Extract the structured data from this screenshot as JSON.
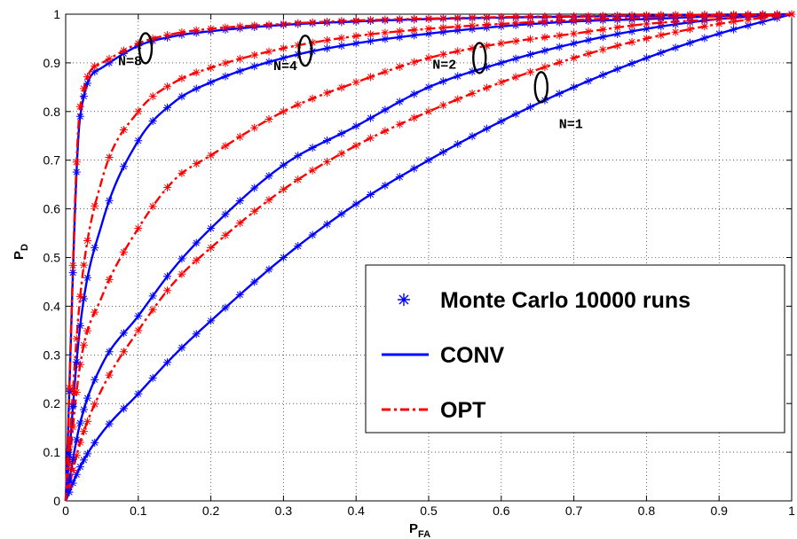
{
  "chart_data": {
    "type": "line",
    "title": "",
    "xlabel": "P",
    "xlabel_sub": "FA",
    "ylabel": "P",
    "ylabel_sub": "D",
    "xlim": [
      0,
      1
    ],
    "ylim": [
      0,
      1
    ],
    "xticks": [
      0,
      0.1,
      0.2,
      0.3,
      0.4,
      0.5,
      0.6,
      0.7,
      0.8,
      0.9,
      1
    ],
    "yticks": [
      0,
      0.1,
      0.2,
      0.3,
      0.4,
      0.5,
      0.6,
      0.7,
      0.8,
      0.9,
      1
    ],
    "xtick_labels": [
      "0",
      "0.1",
      "0.2",
      "0.3",
      "0.4",
      "0.5",
      "0.6",
      "0.7",
      "0.8",
      "0.9",
      "1"
    ],
    "ytick_labels": [
      "0",
      "0.1",
      "0.2",
      "0.3",
      "0.4",
      "0.5",
      "0.6",
      "0.7",
      "0.8",
      "0.9",
      "1"
    ],
    "grid": true,
    "x": [
      0,
      0.02,
      0.05,
      0.1,
      0.15,
      0.2,
      0.3,
      0.4,
      0.5,
      0.6,
      0.7,
      0.8,
      0.9,
      1
    ],
    "series": [
      {
        "name": "CONV",
        "group": "N=1",
        "color": "#0000ff",
        "style": "solid",
        "values": [
          0,
          0.07,
          0.14,
          0.22,
          0.3,
          0.37,
          0.5,
          0.61,
          0.7,
          0.78,
          0.85,
          0.91,
          0.96,
          1
        ]
      },
      {
        "name": "OPT",
        "group": "N=1",
        "color": "#ff0000",
        "style": "dashdot",
        "values": [
          0,
          0.12,
          0.23,
          0.35,
          0.45,
          0.52,
          0.64,
          0.73,
          0.8,
          0.86,
          0.91,
          0.95,
          0.98,
          1
        ]
      },
      {
        "name": "CONV",
        "group": "N=2",
        "color": "#0000ff",
        "style": "solid",
        "values": [
          0,
          0.16,
          0.28,
          0.38,
          0.48,
          0.56,
          0.69,
          0.77,
          0.85,
          0.9,
          0.94,
          0.97,
          0.99,
          1
        ]
      },
      {
        "name": "OPT",
        "group": "N=2",
        "color": "#ff0000",
        "style": "dashdot",
        "values": [
          0,
          0.28,
          0.42,
          0.56,
          0.66,
          0.71,
          0.8,
          0.86,
          0.91,
          0.94,
          0.96,
          0.98,
          0.99,
          1
        ]
      },
      {
        "name": "CONV",
        "group": "N=4",
        "color": "#0000ff",
        "style": "solid",
        "values": [
          0,
          0.36,
          0.57,
          0.74,
          0.82,
          0.86,
          0.91,
          0.94,
          0.96,
          0.975,
          0.985,
          0.99,
          0.996,
          1
        ]
      },
      {
        "name": "OPT",
        "group": "N=4",
        "color": "#ff0000",
        "style": "dashdot",
        "values": [
          0,
          0.42,
          0.66,
          0.8,
          0.86,
          0.89,
          0.93,
          0.955,
          0.97,
          0.98,
          0.988,
          0.993,
          0.997,
          1
        ]
      },
      {
        "name": "CONV",
        "group": "N=8",
        "color": "#0000ff",
        "style": "solid",
        "values": [
          0,
          0.79,
          0.89,
          0.935,
          0.955,
          0.965,
          0.978,
          0.985,
          0.99,
          0.993,
          0.995,
          0.997,
          0.999,
          1
        ]
      },
      {
        "name": "OPT",
        "group": "N=8",
        "color": "#ff0000",
        "style": "dashdot",
        "values": [
          0,
          0.81,
          0.9,
          0.94,
          0.96,
          0.97,
          0.98,
          0.987,
          0.991,
          0.994,
          0.996,
          0.998,
          0.999,
          1
        ]
      }
    ],
    "annotations": [
      {
        "text": "N=8",
        "x": 0.11,
        "y": 0.93
      },
      {
        "text": "N=4",
        "x": 0.33,
        "y": 0.925
      },
      {
        "text": "N=2",
        "x": 0.57,
        "y": 0.91
      },
      {
        "text": "N=1",
        "x": 0.655,
        "y": 0.85
      }
    ],
    "legend": {
      "placement": "lower-right",
      "entries": [
        {
          "label": "Monte Carlo 10000 runs",
          "marker": "asterisk",
          "color": "#0000ff"
        },
        {
          "label": "CONV",
          "marker": "solid-line",
          "color": "#0000ff"
        },
        {
          "label": "OPT",
          "marker": "dashdot-line",
          "color": "#ff0000"
        }
      ]
    }
  }
}
